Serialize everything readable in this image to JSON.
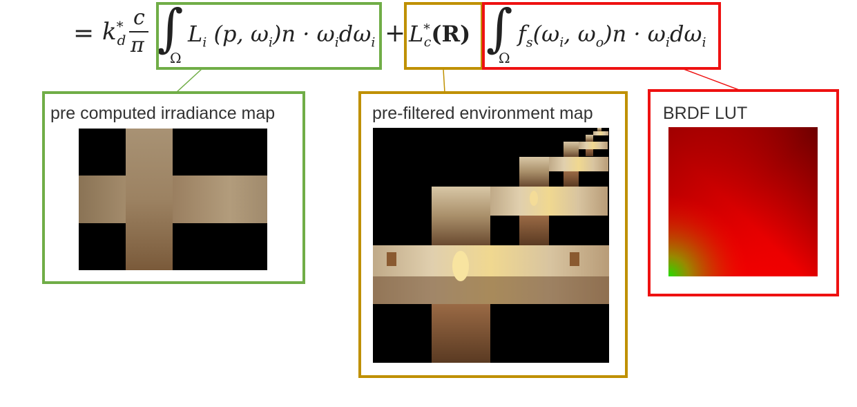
{
  "equation": {
    "equals": "=",
    "k": "k",
    "star": "*",
    "d_sub": "d",
    "frac_num": "c",
    "frac_den": "π",
    "integral": "∫",
    "omega_domain": "Ω",
    "term1": "L",
    "term1_sub": "i",
    "term1_args": "(p, ω",
    "term1_args_sub": "i",
    "term1_rest": ")n · ω",
    "term1_rest_sub": "i",
    "term1_d": "dω",
    "term1_d_sub": "i",
    "plus": "+",
    "term2": "L",
    "term2_star": "*",
    "term2_sub": "c",
    "term2_arg": "(R)",
    "term3": "f",
    "term3_sub": "s",
    "term3_args": "(ω",
    "term3_args_sub1": "i",
    "term3_comma": ", ω",
    "term3_args_sub2": "o",
    "term3_rest": ")n · ω",
    "term3_rest_sub": "i",
    "term3_d": "dω",
    "term3_d_sub": "i"
  },
  "panels": {
    "irradiance": {
      "label": "pre computed irradiance map",
      "color": "#70ad47"
    },
    "prefiltered": {
      "label": "pre-filtered environment map",
      "color": "#bf9000"
    },
    "brdf": {
      "label": "BRDF LUT",
      "color": "#ee1111"
    }
  }
}
